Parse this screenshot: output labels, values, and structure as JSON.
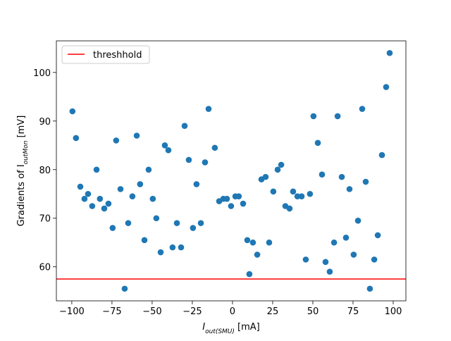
{
  "chart_data": {
    "type": "scatter",
    "xlabel": [
      "I",
      "out(SMU)",
      " [mA]"
    ],
    "ylabel": [
      "Gradients of I",
      "outMon",
      " [mV]"
    ],
    "color": "#1f77b4",
    "x": [
      -99.6,
      -97.4,
      -94.7,
      -92.1,
      -89.9,
      -87.3,
      -84.6,
      -82.5,
      -79.8,
      -77.2,
      -74.6,
      -72.4,
      -69.7,
      -67.1,
      -64.9,
      -62.3,
      -59.6,
      -57.5,
      -54.8,
      -52.2,
      -49.6,
      -47.4,
      -44.7,
      -42.1,
      -39.9,
      -37.3,
      -34.6,
      -32.0,
      -29.8,
      -27.2,
      -24.6,
      -22.4,
      -19.7,
      -17.1,
      -14.9,
      -11.0,
      -8.3,
      -5.7,
      -3.5,
      -0.9,
      1.8,
      3.9,
      6.6,
      9.2,
      10.5,
      12.7,
      15.4,
      18.0,
      20.6,
      22.8,
      25.4,
      28.1,
      30.3,
      32.9,
      35.5,
      37.7,
      40.4,
      43.0,
      45.6,
      48.2,
      50.4,
      53.1,
      55.7,
      57.9,
      60.5,
      63.2,
      65.4,
      68.0,
      70.6,
      72.8,
      75.4,
      78.1,
      80.7,
      82.9,
      85.5,
      88.2,
      90.4,
      93.0,
      95.6,
      97.8
    ],
    "values": [
      92,
      86.5,
      76.5,
      74,
      75,
      72.5,
      80,
      74,
      72,
      73,
      68,
      86,
      76,
      55.5,
      69,
      74.5,
      87,
      77,
      65.5,
      80,
      74,
      70,
      63,
      85,
      84,
      64,
      69,
      64,
      89,
      82,
      68,
      77,
      69,
      81.5,
      92.5,
      84.5,
      73.5,
      74,
      74,
      72.5,
      74.5,
      74.5,
      73,
      65.5,
      58.5,
      65,
      62.5,
      78,
      78.5,
      65,
      75.5,
      80,
      81,
      72.5,
      72,
      75.5,
      74.5,
      74.5,
      61.5,
      75,
      91,
      85.5,
      79,
      61,
      59,
      65,
      91,
      78.5,
      66,
      76,
      62.5,
      69.5,
      92.5,
      77.5,
      55.5,
      61.5,
      66.5,
      83,
      97,
      104
    ],
    "threshold": {
      "name": "threshhold",
      "value": 57.5,
      "color": "#ff0000"
    },
    "legend": "upper left",
    "xlim": [
      -109.6,
      107.9
    ],
    "ylim": [
      53.0,
      106.5
    ],
    "xticks": [
      {
        "value": -100,
        "label": "−100"
      },
      {
        "value": -75,
        "label": "−75"
      },
      {
        "value": -50,
        "label": "−50"
      },
      {
        "value": -25,
        "label": "−25"
      },
      0,
      25,
      50,
      75,
      100
    ],
    "yticks": [
      60,
      70,
      80,
      90,
      100
    ]
  }
}
